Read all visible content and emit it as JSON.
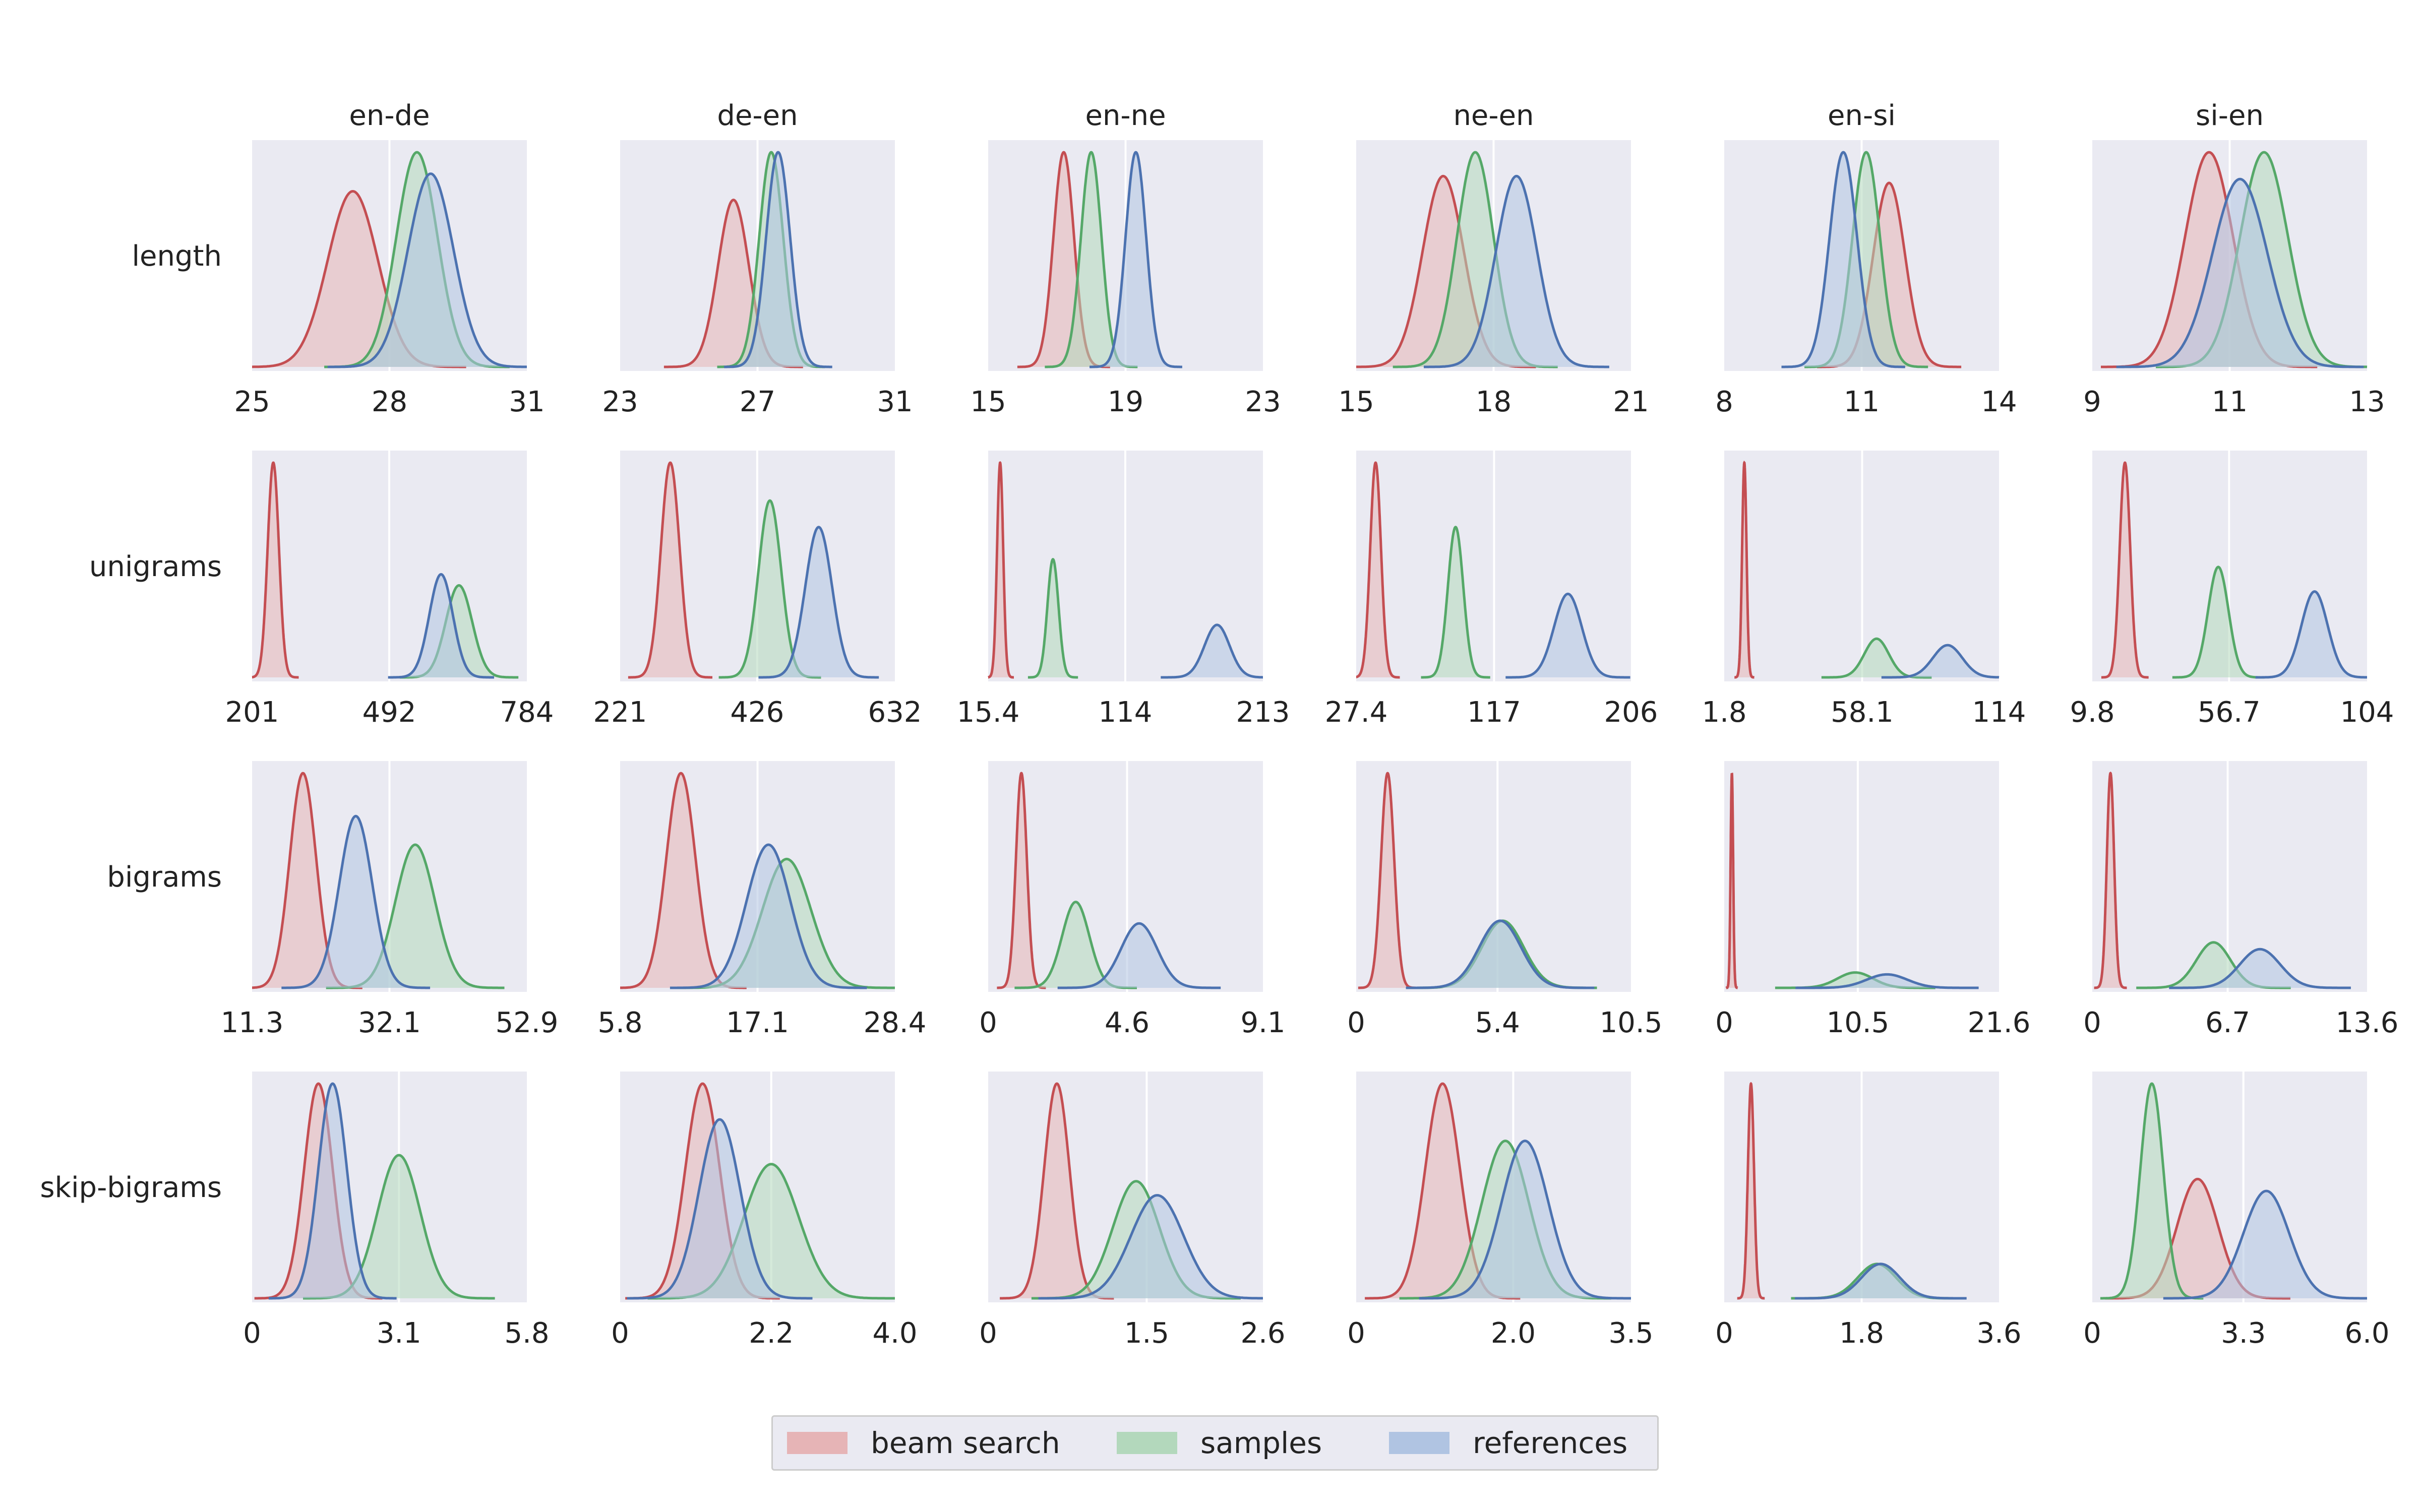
{
  "chart_data": {
    "type": "kde-grid",
    "columns": [
      "en-de",
      "de-en",
      "en-ne",
      "ne-en",
      "en-si",
      "si-en"
    ],
    "rows": [
      "length",
      "unigrams",
      "bigrams",
      "skip-bigrams"
    ],
    "legend": [
      {
        "name": "beam search",
        "color": "#c44e52",
        "fill": "#e6b4b6"
      },
      {
        "name": "samples",
        "color": "#55a868",
        "fill": "#b3d8bc"
      },
      {
        "name": "references",
        "color": "#4c72b0",
        "fill": "#b0c4e2"
      }
    ],
    "panels": [
      [
        {
          "ticks": [
            "25",
            "28",
            "31"
          ],
          "range": [
            25,
            31
          ],
          "beam": {
            "mean": 27.2,
            "sd": 0.55
          },
          "samples": {
            "mean": 28.6,
            "sd": 0.45
          },
          "references": {
            "mean": 28.9,
            "sd": 0.5
          }
        },
        {
          "ticks": [
            "23",
            "27",
            "31"
          ],
          "range": [
            23,
            31
          ],
          "beam": {
            "mean": 26.3,
            "sd": 0.45
          },
          "samples": {
            "mean": 27.4,
            "sd": 0.35
          },
          "references": {
            "mean": 27.6,
            "sd": 0.35
          }
        },
        {
          "ticks": [
            "15",
            "19",
            "23"
          ],
          "range": [
            15,
            23
          ],
          "beam": {
            "mean": 17.2,
            "sd": 0.3
          },
          "samples": {
            "mean": 18.0,
            "sd": 0.3
          },
          "references": {
            "mean": 19.3,
            "sd": 0.3
          }
        },
        {
          "ticks": [
            "15",
            "18",
            "21"
          ],
          "range": [
            15,
            21
          ],
          "beam": {
            "mean": 16.9,
            "sd": 0.45
          },
          "samples": {
            "mean": 17.6,
            "sd": 0.4
          },
          "references": {
            "mean": 18.5,
            "sd": 0.45
          }
        },
        {
          "ticks": [
            "8",
            "11",
            "14"
          ],
          "range": [
            8,
            14
          ],
          "beam": {
            "mean": 11.6,
            "sd": 0.35
          },
          "samples": {
            "mean": 11.1,
            "sd": 0.3
          },
          "references": {
            "mean": 10.6,
            "sd": 0.3
          }
        },
        {
          "ticks": [
            "9",
            "11",
            "13"
          ],
          "range": [
            9,
            13
          ],
          "beam": {
            "mean": 10.7,
            "sd": 0.35
          },
          "samples": {
            "mean": 11.5,
            "sd": 0.35
          },
          "references": {
            "mean": 11.15,
            "sd": 0.4
          }
        }
      ],
      [
        {
          "ticks": [
            "201",
            "492",
            "784"
          ],
          "range": [
            201,
            784
          ],
          "beam": {
            "mean": 246,
            "sd": 12
          },
          "samples": {
            "mean": 640,
            "sd": 28
          },
          "references": {
            "mean": 602,
            "sd": 25
          }
        },
        {
          "ticks": [
            "221",
            "426",
            "632"
          ],
          "range": [
            221,
            632
          ],
          "beam": {
            "mean": 296,
            "sd": 14
          },
          "samples": {
            "mean": 445,
            "sd": 17
          },
          "references": {
            "mean": 518,
            "sd": 20
          }
        },
        {
          "ticks": [
            "15.4",
            "114",
            "213"
          ],
          "range": [
            15.4,
            213
          ],
          "beam": {
            "mean": 24,
            "sd": 2.2
          },
          "samples": {
            "mean": 62,
            "sd": 4
          },
          "references": {
            "mean": 180,
            "sd": 9
          }
        },
        {
          "ticks": [
            "27.4",
            "117",
            "206"
          ],
          "range": [
            27.4,
            206
          ],
          "beam": {
            "mean": 40,
            "sd": 3.5
          },
          "samples": {
            "mean": 92,
            "sd": 5
          },
          "references": {
            "mean": 165,
            "sd": 9
          }
        },
        {
          "ticks": [
            "1.8",
            "58.1",
            "114"
          ],
          "range": [
            1.8,
            114
          ],
          "beam": {
            "mean": 10,
            "sd": 0.9
          },
          "samples": {
            "mean": 64,
            "sd": 5
          },
          "references": {
            "mean": 93,
            "sd": 6
          }
        },
        {
          "ticks": [
            "9.8",
            "56.7",
            "104"
          ],
          "range": [
            9.8,
            104
          ],
          "beam": {
            "mean": 21,
            "sd": 1.8
          },
          "samples": {
            "mean": 53,
            "sd": 3.5
          },
          "references": {
            "mean": 86,
            "sd": 4.5
          }
        }
      ],
      [
        {
          "ticks": [
            "11.3",
            "32.1",
            "52.9"
          ],
          "range": [
            11.3,
            52.9
          ],
          "beam": {
            "mean": 19,
            "sd": 2.0
          },
          "samples": {
            "mean": 36,
            "sd": 3.0
          },
          "references": {
            "mean": 27,
            "sd": 2.5
          }
        },
        {
          "ticks": [
            "5.8",
            "17.1",
            "28.4"
          ],
          "range": [
            5.8,
            28.4
          ],
          "beam": {
            "mean": 10.8,
            "sd": 1.2
          },
          "samples": {
            "mean": 19.5,
            "sd": 2.0
          },
          "references": {
            "mean": 18.0,
            "sd": 1.8
          }
        },
        {
          "ticks": [
            "0",
            "4.6",
            "9.1"
          ],
          "range": [
            0,
            9.1
          ],
          "beam": {
            "mean": 1.1,
            "sd": 0.18
          },
          "samples": {
            "mean": 2.9,
            "sd": 0.45
          },
          "references": {
            "mean": 5.0,
            "sd": 0.6
          }
        },
        {
          "ticks": [
            "0",
            "5.4",
            "10.5"
          ],
          "range": [
            0,
            10.5
          ],
          "beam": {
            "mean": 1.2,
            "sd": 0.25
          },
          "samples": {
            "mean": 5.6,
            "sd": 0.8
          },
          "references": {
            "mean": 5.5,
            "sd": 0.8
          }
        },
        {
          "ticks": [
            "0",
            "10.5",
            "21.6"
          ],
          "range": [
            0,
            21.6
          ],
          "beam": {
            "mean": 0.6,
            "sd": 0.1
          },
          "samples": {
            "mean": 10.3,
            "sd": 1.4
          },
          "references": {
            "mean": 12.8,
            "sd": 1.6
          }
        },
        {
          "ticks": [
            "0",
            "6.7",
            "13.6"
          ],
          "range": [
            0,
            13.6
          ],
          "beam": {
            "mean": 0.9,
            "sd": 0.18
          },
          "samples": {
            "mean": 6.0,
            "sd": 0.85
          },
          "references": {
            "mean": 8.3,
            "sd": 1.0
          }
        }
      ],
      [
        {
          "ticks": [
            "0",
            "3.1",
            "5.8"
          ],
          "range": [
            0,
            5.8
          ],
          "beam": {
            "mean": 1.4,
            "sd": 0.3
          },
          "samples": {
            "mean": 3.1,
            "sd": 0.45
          },
          "references": {
            "mean": 1.7,
            "sd": 0.3
          }
        },
        {
          "ticks": [
            "0",
            "2.2",
            "4.0"
          ],
          "range": [
            0,
            4.0
          ],
          "beam": {
            "mean": 1.2,
            "sd": 0.25
          },
          "samples": {
            "mean": 2.2,
            "sd": 0.4
          },
          "references": {
            "mean": 1.45,
            "sd": 0.3
          }
        },
        {
          "ticks": [
            "0",
            "1.5",
            "2.6"
          ],
          "range": [
            0,
            2.6
          ],
          "beam": {
            "mean": 0.65,
            "sd": 0.12
          },
          "samples": {
            "mean": 1.4,
            "sd": 0.22
          },
          "references": {
            "mean": 1.6,
            "sd": 0.25
          }
        },
        {
          "ticks": [
            "0",
            "2.0",
            "3.5"
          ],
          "range": [
            0,
            3.5
          ],
          "beam": {
            "mean": 1.1,
            "sd": 0.22
          },
          "samples": {
            "mean": 1.9,
            "sd": 0.3
          },
          "references": {
            "mean": 2.15,
            "sd": 0.3
          }
        },
        {
          "ticks": [
            "0",
            "1.8",
            "3.6"
          ],
          "range": [
            0,
            3.6
          ],
          "beam": {
            "mean": 0.35,
            "sd": 0.04
          },
          "samples": {
            "mean": 2.0,
            "sd": 0.25
          },
          "references": {
            "mean": 2.05,
            "sd": 0.25
          }
        },
        {
          "ticks": [
            "0",
            "3.3",
            "6.0"
          ],
          "range": [
            0,
            6.0
          ],
          "beam": {
            "mean": 2.3,
            "sd": 0.45
          },
          "samples": {
            "mean": 1.3,
            "sd": 0.25
          },
          "references": {
            "mean": 3.8,
            "sd": 0.5
          }
        }
      ]
    ]
  }
}
